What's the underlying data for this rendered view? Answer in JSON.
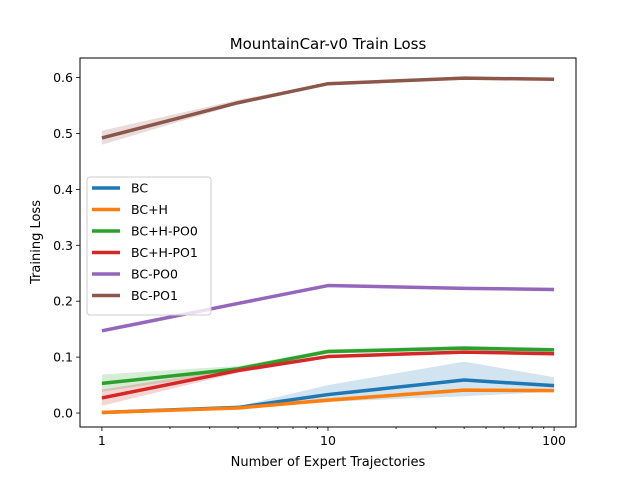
{
  "chart_data": {
    "type": "line",
    "title": "MountainCar-v0 Train Loss",
    "xlabel": "Number of Expert Trajectories",
    "ylabel": "Training Loss",
    "xscale": "log",
    "xlim": [
      0.8,
      125
    ],
    "ylim": [
      -0.025,
      0.635
    ],
    "xticks": [
      {
        "value": 1,
        "label": "1"
      },
      {
        "value": 10,
        "label": "10"
      },
      {
        "value": 100,
        "label": "100"
      }
    ],
    "yticks": [
      {
        "value": 0.0,
        "label": "0.0"
      },
      {
        "value": 0.1,
        "label": "0.1"
      },
      {
        "value": 0.2,
        "label": "0.2"
      },
      {
        "value": 0.3,
        "label": "0.3"
      },
      {
        "value": 0.4,
        "label": "0.4"
      },
      {
        "value": 0.5,
        "label": "0.5"
      },
      {
        "value": 0.6,
        "label": "0.6"
      }
    ],
    "grid": false,
    "legend_position": "center-left",
    "x": [
      1,
      4,
      10,
      40,
      100
    ],
    "series": [
      {
        "name": "BC",
        "color": "#1f77b4",
        "values": [
          0.001,
          0.01,
          0.033,
          0.059,
          0.049
        ],
        "lower": [
          0.0,
          0.008,
          0.02,
          0.03,
          0.038
        ],
        "upper": [
          0.003,
          0.012,
          0.05,
          0.092,
          0.064
        ]
      },
      {
        "name": "BC+H",
        "color": "#ff7f0e",
        "values": [
          0.001,
          0.009,
          0.023,
          0.041,
          0.04
        ],
        "lower": [
          0.0,
          0.008,
          0.019,
          0.038,
          0.038
        ],
        "upper": [
          0.003,
          0.011,
          0.027,
          0.044,
          0.043
        ]
      },
      {
        "name": "BC+H-PO0",
        "color": "#2ca02c",
        "values": [
          0.053,
          0.079,
          0.11,
          0.116,
          0.113
        ],
        "lower": [
          0.038,
          0.074,
          0.106,
          0.112,
          0.109
        ],
        "upper": [
          0.069,
          0.084,
          0.114,
          0.12,
          0.117
        ]
      },
      {
        "name": "BC+H-PO1",
        "color": "#d62728",
        "values": [
          0.027,
          0.076,
          0.101,
          0.109,
          0.106
        ],
        "lower": [
          0.013,
          0.072,
          0.098,
          0.106,
          0.103
        ],
        "upper": [
          0.042,
          0.08,
          0.104,
          0.112,
          0.109
        ]
      },
      {
        "name": "BC-PO0",
        "color": "#9467bd",
        "values": [
          0.147,
          0.196,
          0.228,
          0.223,
          0.221
        ],
        "lower": [
          0.145,
          0.193,
          0.226,
          0.221,
          0.219
        ],
        "upper": [
          0.149,
          0.199,
          0.23,
          0.225,
          0.223
        ]
      },
      {
        "name": "BC-PO1",
        "color": "#8c564b",
        "values": [
          0.492,
          0.555,
          0.589,
          0.599,
          0.597
        ],
        "lower": [
          0.48,
          0.552,
          0.587,
          0.596,
          0.595
        ],
        "upper": [
          0.505,
          0.56,
          0.591,
          0.602,
          0.599
        ]
      }
    ]
  }
}
